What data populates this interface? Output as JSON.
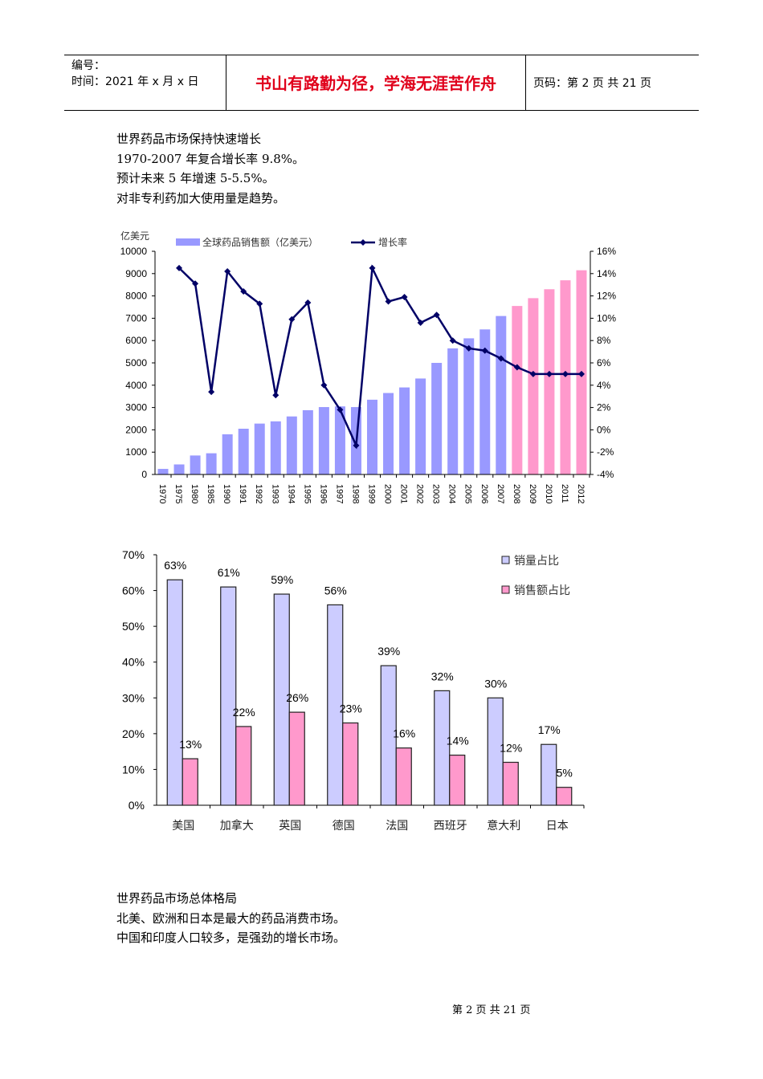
{
  "header": {
    "number_label": "编号：",
    "date_label": "时间：2021 年 x 月 x 日",
    "motto": "书山有路勤为径，学海无涯苦作舟",
    "page_info": "页码：第 2 页  共 21 页"
  },
  "intro": [
    "世界药品市场保持快速增长",
    "1970-2007 年复合增长率 9.8%。",
    "预计未来 5 年增速 5-5.5%。",
    "对非专利药加大使用量是趋势。"
  ],
  "outro": [
    "世界药品市场总体格局",
    "北美、欧洲和日本是最大的药品消费市场。",
    "中国和印度人口较多，是强劲的增长市场。"
  ],
  "footer": "第 2 页 共 21 页",
  "chart_data": [
    {
      "type": "bar+line",
      "ylabel": "亿美元",
      "ylim": [
        0,
        10000
      ],
      "y2lim": [
        -4,
        16
      ],
      "yticks": [
        "0",
        "1000",
        "2000",
        "3000",
        "4000",
        "5000",
        "6000",
        "7000",
        "8000",
        "9000",
        "10000"
      ],
      "y2ticks": [
        "-4%",
        "-2%",
        "0%",
        "2%",
        "4%",
        "6%",
        "8%",
        "10%",
        "12%",
        "14%",
        "16%"
      ],
      "legend_position": "top",
      "categories": [
        "1970",
        "1975",
        "1980",
        "1985",
        "1990",
        "1991",
        "1992",
        "1993",
        "1994",
        "1995",
        "1996",
        "1997",
        "1998",
        "1999",
        "2000",
        "2001",
        "2002",
        "2003",
        "2004",
        "2005",
        "2006",
        "2007",
        "2008",
        "2009",
        "2010",
        "2011",
        "2012"
      ],
      "series": [
        {
          "name": "全球药品销售额（亿美元）",
          "type": "bar",
          "color": "#9999ff",
          "forecast_color": "#ff99cc",
          "forecast_from": "2008",
          "values": [
            250,
            450,
            850,
            950,
            1800,
            2050,
            2280,
            2380,
            2600,
            2880,
            3020,
            3050,
            3020,
            3350,
            3650,
            3900,
            4300,
            5000,
            5650,
            6100,
            6500,
            7100,
            7550,
            7900,
            8300,
            8700,
            9150
          ]
        },
        {
          "name": "增长率",
          "type": "line",
          "axis": "right",
          "color": "#000066",
          "values": [
            null,
            14.5,
            13.1,
            3.4,
            14.2,
            12.4,
            11.3,
            3.1,
            9.9,
            11.4,
            4.0,
            1.8,
            -1.4,
            14.5,
            11.5,
            11.9,
            9.6,
            10.3,
            8.0,
            7.3,
            7.1,
            6.4,
            5.6,
            5.0,
            5.0,
            5.0,
            5.0
          ]
        }
      ]
    },
    {
      "type": "bar",
      "ylim": [
        0,
        70
      ],
      "yticks": [
        "0%",
        "10%",
        "20%",
        "30%",
        "40%",
        "50%",
        "60%",
        "70%"
      ],
      "legend_position": "top-right",
      "categories": [
        "美国",
        "加拿大",
        "英国",
        "德国",
        "法国",
        "西班牙",
        "意大利",
        "日本"
      ],
      "series": [
        {
          "name": "销量占比",
          "color": "#ccccff",
          "values": [
            63,
            61,
            59,
            56,
            39,
            32,
            30,
            17
          ]
        },
        {
          "name": "销售额占比",
          "color": "#ff99cc",
          "values": [
            13,
            22,
            26,
            23,
            16,
            14,
            12,
            5
          ]
        }
      ]
    }
  ]
}
